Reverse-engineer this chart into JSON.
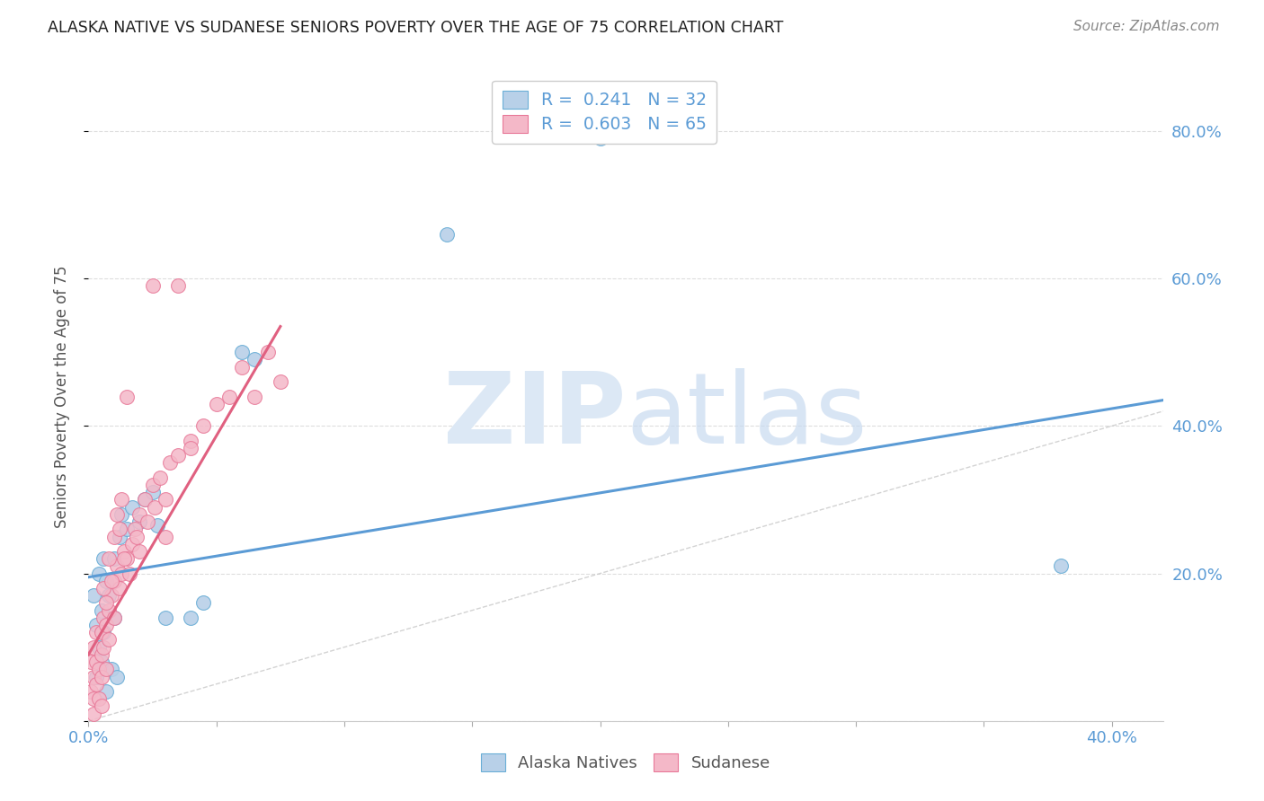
{
  "title": "ALASKA NATIVE VS SUDANESE SENIORS POVERTY OVER THE AGE OF 75 CORRELATION CHART",
  "source": "Source: ZipAtlas.com",
  "ylabel": "Seniors Poverty Over the Age of 75",
  "color_alaska": "#b8d0e8",
  "color_alaska_edge": "#6aaed6",
  "color_sudanese": "#f4b8c8",
  "color_sudanese_edge": "#e87898",
  "color_line_alaska": "#5b9bd5",
  "color_line_sudanese": "#e06080",
  "color_diagonal": "#c8c8c8",
  "color_grid": "#dddddd",
  "watermark_color": "#dce8f5",
  "xlim": [
    0.0,
    0.42
  ],
  "ylim": [
    0.0,
    0.88
  ],
  "alaska_x": [
    0.002,
    0.003,
    0.003,
    0.004,
    0.004,
    0.005,
    0.005,
    0.006,
    0.006,
    0.007,
    0.007,
    0.008,
    0.009,
    0.01,
    0.01,
    0.011,
    0.012,
    0.013,
    0.015,
    0.017,
    0.02,
    0.022,
    0.025,
    0.027,
    0.03,
    0.04,
    0.045,
    0.06,
    0.065,
    0.14,
    0.2,
    0.38
  ],
  "alaska_y": [
    0.17,
    0.13,
    0.06,
    0.1,
    0.2,
    0.08,
    0.15,
    0.22,
    0.12,
    0.19,
    0.04,
    0.17,
    0.07,
    0.22,
    0.14,
    0.06,
    0.25,
    0.28,
    0.26,
    0.29,
    0.27,
    0.3,
    0.31,
    0.265,
    0.14,
    0.14,
    0.16,
    0.5,
    0.49,
    0.66,
    0.79,
    0.21
  ],
  "sudanese_x": [
    0.001,
    0.001,
    0.002,
    0.002,
    0.002,
    0.002,
    0.003,
    0.003,
    0.003,
    0.004,
    0.004,
    0.005,
    0.005,
    0.005,
    0.006,
    0.006,
    0.007,
    0.007,
    0.008,
    0.008,
    0.009,
    0.01,
    0.01,
    0.011,
    0.012,
    0.013,
    0.014,
    0.015,
    0.016,
    0.017,
    0.018,
    0.019,
    0.02,
    0.02,
    0.022,
    0.023,
    0.025,
    0.026,
    0.028,
    0.03,
    0.032,
    0.035,
    0.04,
    0.045,
    0.05,
    0.055,
    0.06,
    0.065,
    0.07,
    0.075,
    0.005,
    0.006,
    0.007,
    0.008,
    0.009,
    0.01,
    0.011,
    0.012,
    0.013,
    0.014,
    0.015,
    0.025,
    0.03,
    0.035,
    0.04
  ],
  "sudanese_y": [
    0.08,
    0.04,
    0.06,
    0.03,
    0.1,
    0.01,
    0.05,
    0.08,
    0.12,
    0.07,
    0.03,
    0.09,
    0.12,
    0.06,
    0.14,
    0.1,
    0.13,
    0.07,
    0.15,
    0.11,
    0.17,
    0.19,
    0.14,
    0.21,
    0.18,
    0.2,
    0.23,
    0.22,
    0.2,
    0.24,
    0.26,
    0.25,
    0.28,
    0.23,
    0.3,
    0.27,
    0.32,
    0.29,
    0.33,
    0.3,
    0.35,
    0.36,
    0.38,
    0.4,
    0.43,
    0.44,
    0.48,
    0.44,
    0.5,
    0.46,
    0.02,
    0.18,
    0.16,
    0.22,
    0.19,
    0.25,
    0.28,
    0.26,
    0.3,
    0.22,
    0.44,
    0.59,
    0.25,
    0.59,
    0.37
  ],
  "alaska_line_x": [
    0.0,
    0.42
  ],
  "alaska_line_y": [
    0.195,
    0.435
  ],
  "sudanese_line_x": [
    0.0,
    0.075
  ],
  "sudanese_line_y": [
    0.09,
    0.535
  ]
}
